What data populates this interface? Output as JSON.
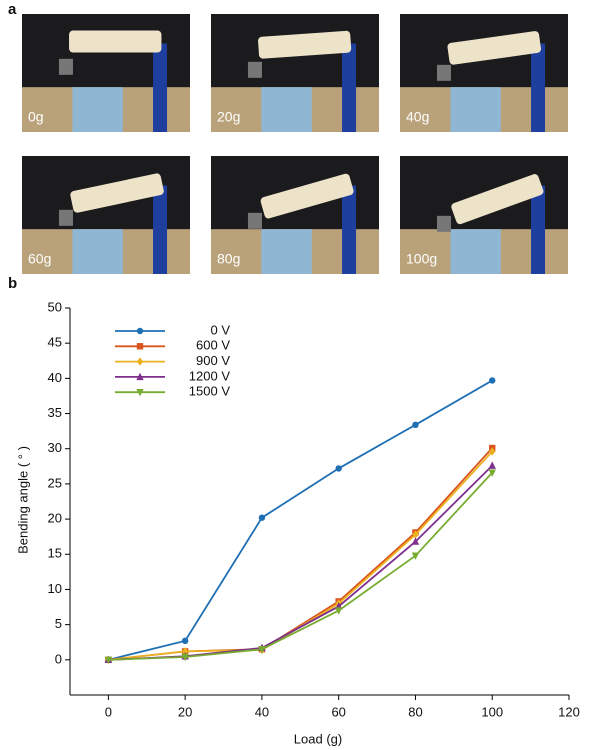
{
  "figure": {
    "panel_a_label": "a",
    "panel_b_label": "b",
    "photo_labels": [
      "0g",
      "20g",
      "40g",
      "60g",
      "80g",
      "100g"
    ]
  },
  "chart_data": {
    "type": "line",
    "xlabel": "Load (g)",
    "ylabel": "Bending angle ( ° )",
    "x": [
      0,
      20,
      40,
      60,
      80,
      100
    ],
    "series": [
      {
        "name": "0 V",
        "color": "#1f6fb5",
        "marker": "circle",
        "values": [
          0,
          2.7,
          20.2,
          27.2,
          33.4,
          39.7
        ]
      },
      {
        "name": "600 V",
        "color": "#d9541e",
        "marker": "square",
        "values": [
          0,
          1.2,
          1.5,
          8.3,
          18.1,
          30.1
        ]
      },
      {
        "name": "900 V",
        "color": "#edb120",
        "marker": "diamond",
        "values": [
          0,
          1.2,
          1.4,
          8.0,
          17.8,
          29.6
        ]
      },
      {
        "name": "1200 V",
        "color": "#7e2f8e",
        "marker": "triangle",
        "values": [
          0,
          0.5,
          1.7,
          7.6,
          16.8,
          27.6
        ]
      },
      {
        "name": "1500 V",
        "color": "#77ac30",
        "marker": "triangle-down",
        "values": [
          0,
          0.4,
          1.5,
          7.0,
          14.8,
          26.6
        ]
      }
    ],
    "xlim": [
      -10,
      120
    ],
    "xticks": [
      0,
      20,
      40,
      60,
      80,
      100,
      120
    ],
    "ylim": [
      -5,
      50
    ],
    "yticks": [
      0,
      5,
      10,
      15,
      20,
      25,
      30,
      35,
      40,
      45,
      50
    ],
    "legend": "upper-left",
    "grid": false
  }
}
